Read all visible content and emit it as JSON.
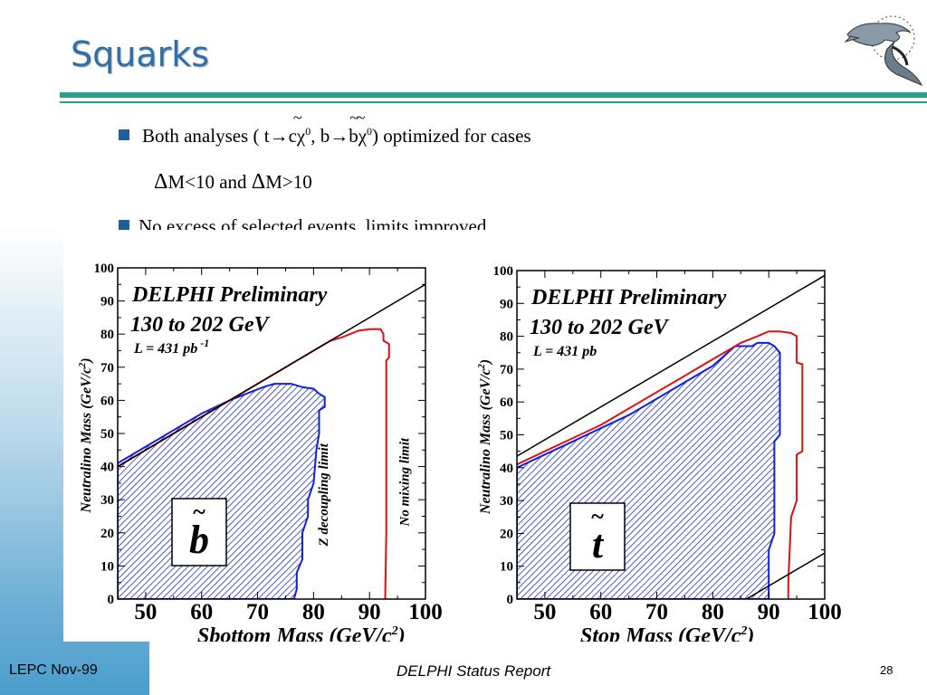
{
  "slide": {
    "title": "Squarks",
    "bullets": [
      {
        "parts": [
          "Both analyses ( t",
          "→",
          "c",
          "χ",
          "0",
          ", b",
          "→",
          "b",
          "χ",
          "0",
          ") optimized for cases"
        ]
      },
      {
        "text": "No excess of selected events, limits improved."
      }
    ],
    "subline": {
      "delta": "Δ",
      "a": "M<10 and ",
      "b": "M>10"
    },
    "footer": {
      "left": "LEPC Nov-99",
      "center": "DELPHI Status Report",
      "page": "28"
    },
    "colors": {
      "title": "#2f6fa8",
      "rule": "#2a9d8f",
      "bullet": "#1f5fa0"
    }
  },
  "chart_data": [
    {
      "type": "area",
      "title": "DELPHI Preliminary",
      "subtitle": "130 to 202 GeV",
      "luminosity": "L = 431 pb",
      "luminosity_exp": "-1",
      "particle": "b",
      "xlabel": "Sbottom Mass (GeV/c",
      "ylabel": "Neutralino Mass (GeV/c",
      "unit_exp": "2",
      "xlim": [
        45,
        100
      ],
      "ylim": [
        0,
        100
      ],
      "xticks": [
        "50",
        "60",
        "70",
        "80",
        "90",
        "100"
      ],
      "yticks": [
        "0",
        "10",
        "20",
        "30",
        "40",
        "50",
        "60",
        "70",
        "80",
        "90",
        "100"
      ],
      "annotations": [
        "Z decoupling limit",
        "No mixing limit"
      ],
      "kinematic_line": [
        [
          45,
          40
        ],
        [
          100,
          95
        ]
      ],
      "series": [
        {
          "name": "No mixing limit",
          "color": "#e01010",
          "points": [
            [
              45,
              40
            ],
            [
              50,
              45
            ],
            [
              55,
              50
            ],
            [
              60,
              55
            ],
            [
              65,
              60
            ],
            [
              70,
              65
            ],
            [
              75,
              70
            ],
            [
              80,
              75
            ],
            [
              83,
              78
            ],
            [
              85,
              79
            ],
            [
              88,
              81
            ],
            [
              90,
              81.5
            ],
            [
              92,
              81.5
            ],
            [
              92.5,
              80
            ],
            [
              92.5,
              78
            ],
            [
              93.5,
              77
            ],
            [
              93.5,
              73
            ],
            [
              93,
              72
            ],
            [
              93,
              20
            ],
            [
              92.8,
              0
            ]
          ]
        },
        {
          "name": "Z decoupling limit",
          "color": "#1020e0",
          "filled": true,
          "points": [
            [
              45,
              0
            ],
            [
              45,
              41
            ],
            [
              50,
              46
            ],
            [
              55,
              51
            ],
            [
              60,
              56
            ],
            [
              65,
              60
            ],
            [
              68,
              62
            ],
            [
              71,
              64
            ],
            [
              73,
              65
            ],
            [
              76,
              65
            ],
            [
              78,
              64
            ],
            [
              80,
              63.5
            ],
            [
              81,
              62
            ],
            [
              82,
              61
            ],
            [
              82,
              58
            ],
            [
              81,
              57
            ],
            [
              81,
              50
            ],
            [
              80.5,
              45
            ],
            [
              80,
              35
            ],
            [
              79,
              30
            ],
            [
              79,
              25
            ],
            [
              78,
              20
            ],
            [
              78,
              12
            ],
            [
              77,
              8
            ],
            [
              77,
              3
            ],
            [
              76.5,
              0
            ]
          ]
        }
      ]
    },
    {
      "type": "area",
      "title": "DELPHI Preliminary",
      "subtitle": "130 to 202 GeV",
      "luminosity": "L = 431 pb",
      "particle": "t",
      "xlabel": "Stop Mass (GeV/c",
      "ylabel": "Neutralino Mass (GeV/c",
      "unit_exp": "2",
      "xlim": [
        45,
        100
      ],
      "ylim": [
        0,
        100
      ],
      "xticks": [
        "50",
        "60",
        "70",
        "80",
        "90",
        "100"
      ],
      "yticks": [
        "0",
        "10",
        "20",
        "30",
        "40",
        "50",
        "60",
        "70",
        "80",
        "90",
        "100"
      ],
      "kinematic_lines": [
        [
          [
            45,
            43.5
          ],
          [
            100,
            98.5
          ]
        ],
        [
          [
            86,
            0
          ],
          [
            100,
            14
          ]
        ]
      ],
      "series": [
        {
          "name": "red",
          "color": "#e01010",
          "points": [
            [
              45,
              41
            ],
            [
              50,
              45
            ],
            [
              55,
              49
            ],
            [
              60,
              53
            ],
            [
              65,
              58
            ],
            [
              70,
              63
            ],
            [
              75,
              68
            ],
            [
              80,
              73
            ],
            [
              85,
              78
            ],
            [
              88,
              80
            ],
            [
              90,
              81.5
            ],
            [
              92,
              81.5
            ],
            [
              94,
              81
            ],
            [
              95,
              80
            ],
            [
              95,
              72
            ],
            [
              96,
              71.5
            ],
            [
              96,
              45
            ],
            [
              95,
              44
            ],
            [
              95,
              30
            ],
            [
              94,
              25
            ],
            [
              93.5,
              5
            ],
            [
              93.5,
              0
            ]
          ]
        },
        {
          "name": "blue",
          "color": "#1020e0",
          "filled": true,
          "points": [
            [
              45,
              0
            ],
            [
              45,
              40
            ],
            [
              50,
              44
            ],
            [
              55,
              48
            ],
            [
              60,
              52
            ],
            [
              65,
              56
            ],
            [
              70,
              61
            ],
            [
              75,
              66
            ],
            [
              80,
              71
            ],
            [
              82,
              74
            ],
            [
              84,
              77
            ],
            [
              87,
              77
            ],
            [
              88,
              78
            ],
            [
              90,
              78
            ],
            [
              91,
              77
            ],
            [
              92,
              75
            ],
            [
              92,
              50
            ],
            [
              91,
              48
            ],
            [
              91,
              20
            ],
            [
              90,
              15
            ],
            [
              90,
              5
            ],
            [
              90,
              0
            ]
          ]
        }
      ]
    }
  ]
}
